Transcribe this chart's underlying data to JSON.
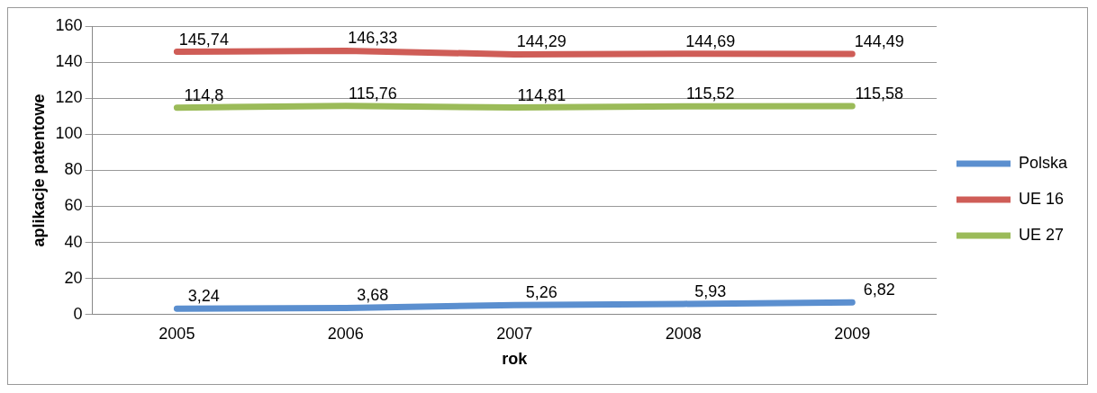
{
  "chart_data": {
    "type": "line",
    "xlabel": "rok",
    "ylabel": "aplikacje patentowe",
    "categories": [
      "2005",
      "2006",
      "2007",
      "2008",
      "2009"
    ],
    "series": [
      {
        "name": "Polska",
        "color": "#5b8fcf",
        "values": [
          3.24,
          3.68,
          5.26,
          5.93,
          6.82
        ],
        "value_labels": [
          "3,24",
          "3,68",
          "5,26",
          "5,93",
          "6,82"
        ]
      },
      {
        "name": "UE 16",
        "color": "#cf5d57",
        "values": [
          145.74,
          146.33,
          144.29,
          144.69,
          144.49
        ],
        "value_labels": [
          "145,74",
          "146,33",
          "144,29",
          "144,69",
          "144,49"
        ]
      },
      {
        "name": "UE 27",
        "color": "#9bbb59",
        "values": [
          114.8,
          115.76,
          114.81,
          115.52,
          115.58
        ],
        "value_labels": [
          "114,8",
          "115,76",
          "114,81",
          "115,52",
          "115,58"
        ]
      }
    ],
    "ylim": [
      0,
      160
    ],
    "yticks": [
      0,
      20,
      40,
      60,
      80,
      100,
      120,
      140,
      160
    ],
    "grid": "y",
    "legend": "right",
    "marker": "none",
    "line_style": "solid"
  }
}
